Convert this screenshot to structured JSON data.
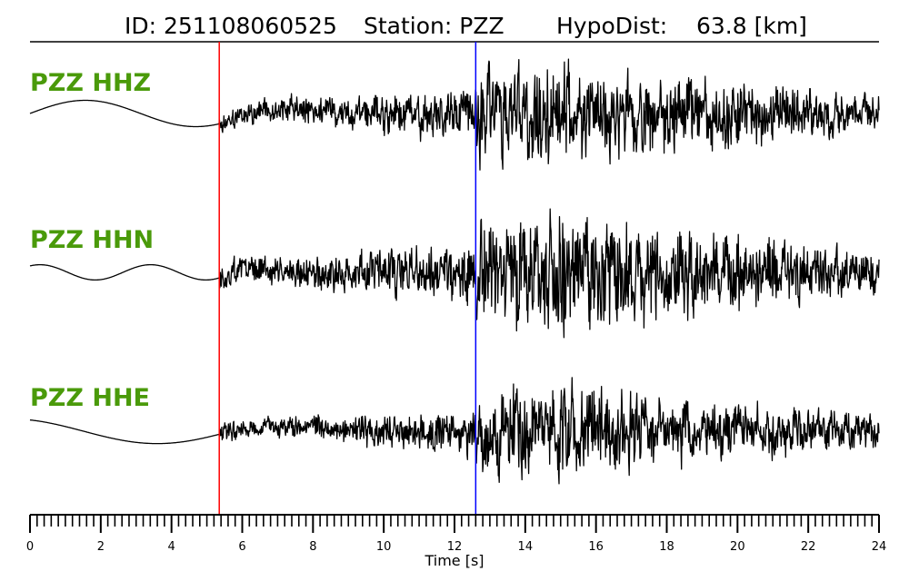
{
  "chart_data": {
    "type": "line",
    "title_parts": {
      "id": "ID: 251108060525",
      "station": "Station: PZZ",
      "hypodist": "HypoDist:    63.8 [km]"
    },
    "xlabel": "Time [s]",
    "xlim": [
      0,
      24
    ],
    "x_ticks": [
      0,
      2,
      4,
      6,
      8,
      10,
      12,
      14,
      16,
      18,
      20,
      22,
      24
    ],
    "minor_tick_step": 0.2,
    "grid": false,
    "markers": [
      {
        "x": 5.35,
        "color": "#ff0000"
      },
      {
        "x": 12.6,
        "color": "#0000ff"
      }
    ],
    "series": [
      {
        "name": "PZZ HHZ",
        "color": "#000000"
      },
      {
        "name": "PZZ HHN",
        "color": "#000000"
      },
      {
        "name": "PZZ HHE",
        "color": "#000000"
      }
    ],
    "label_color": "#4a9a0a"
  }
}
